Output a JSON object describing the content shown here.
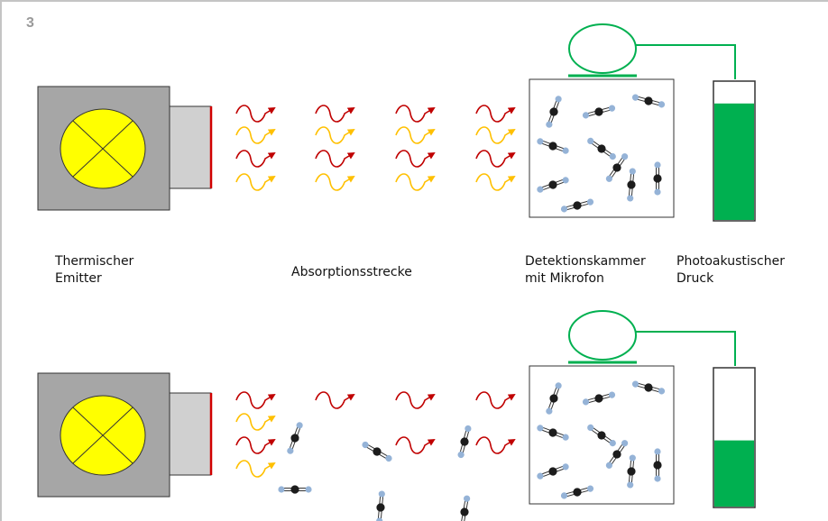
{
  "figure_number": "3",
  "labels": {
    "emitter": [
      "Thermischer",
      "Emitter"
    ],
    "absorption": "Absorptionsstrecke",
    "chamber": [
      "Detektionskammer",
      "mit Mikrofon"
    ],
    "pressure": [
      "Photoakustischer",
      "Druck"
    ]
  },
  "colors": {
    "frame": "#c4c4c4",
    "emitter_body": "#a6a6a6",
    "emitter_window": "#d0d0d0",
    "lamp": "#ffff00",
    "window_edge": "#d10000",
    "wave_red": "#c00000",
    "wave_yellow": "#ffc000",
    "gauge_fill": "#00b050",
    "carbon_atom": "#1c1c1c",
    "oxygen_atom": "#95b3d7"
  },
  "panels": [
    {
      "id": "top",
      "description_state": "without gas in absorption path",
      "gauge_level": 0.84,
      "molecules_in_path": 0
    },
    {
      "id": "bottom",
      "description_state": "with gas in absorption path",
      "gauge_level": 0.48,
      "molecules_in_path": 6
    }
  ]
}
